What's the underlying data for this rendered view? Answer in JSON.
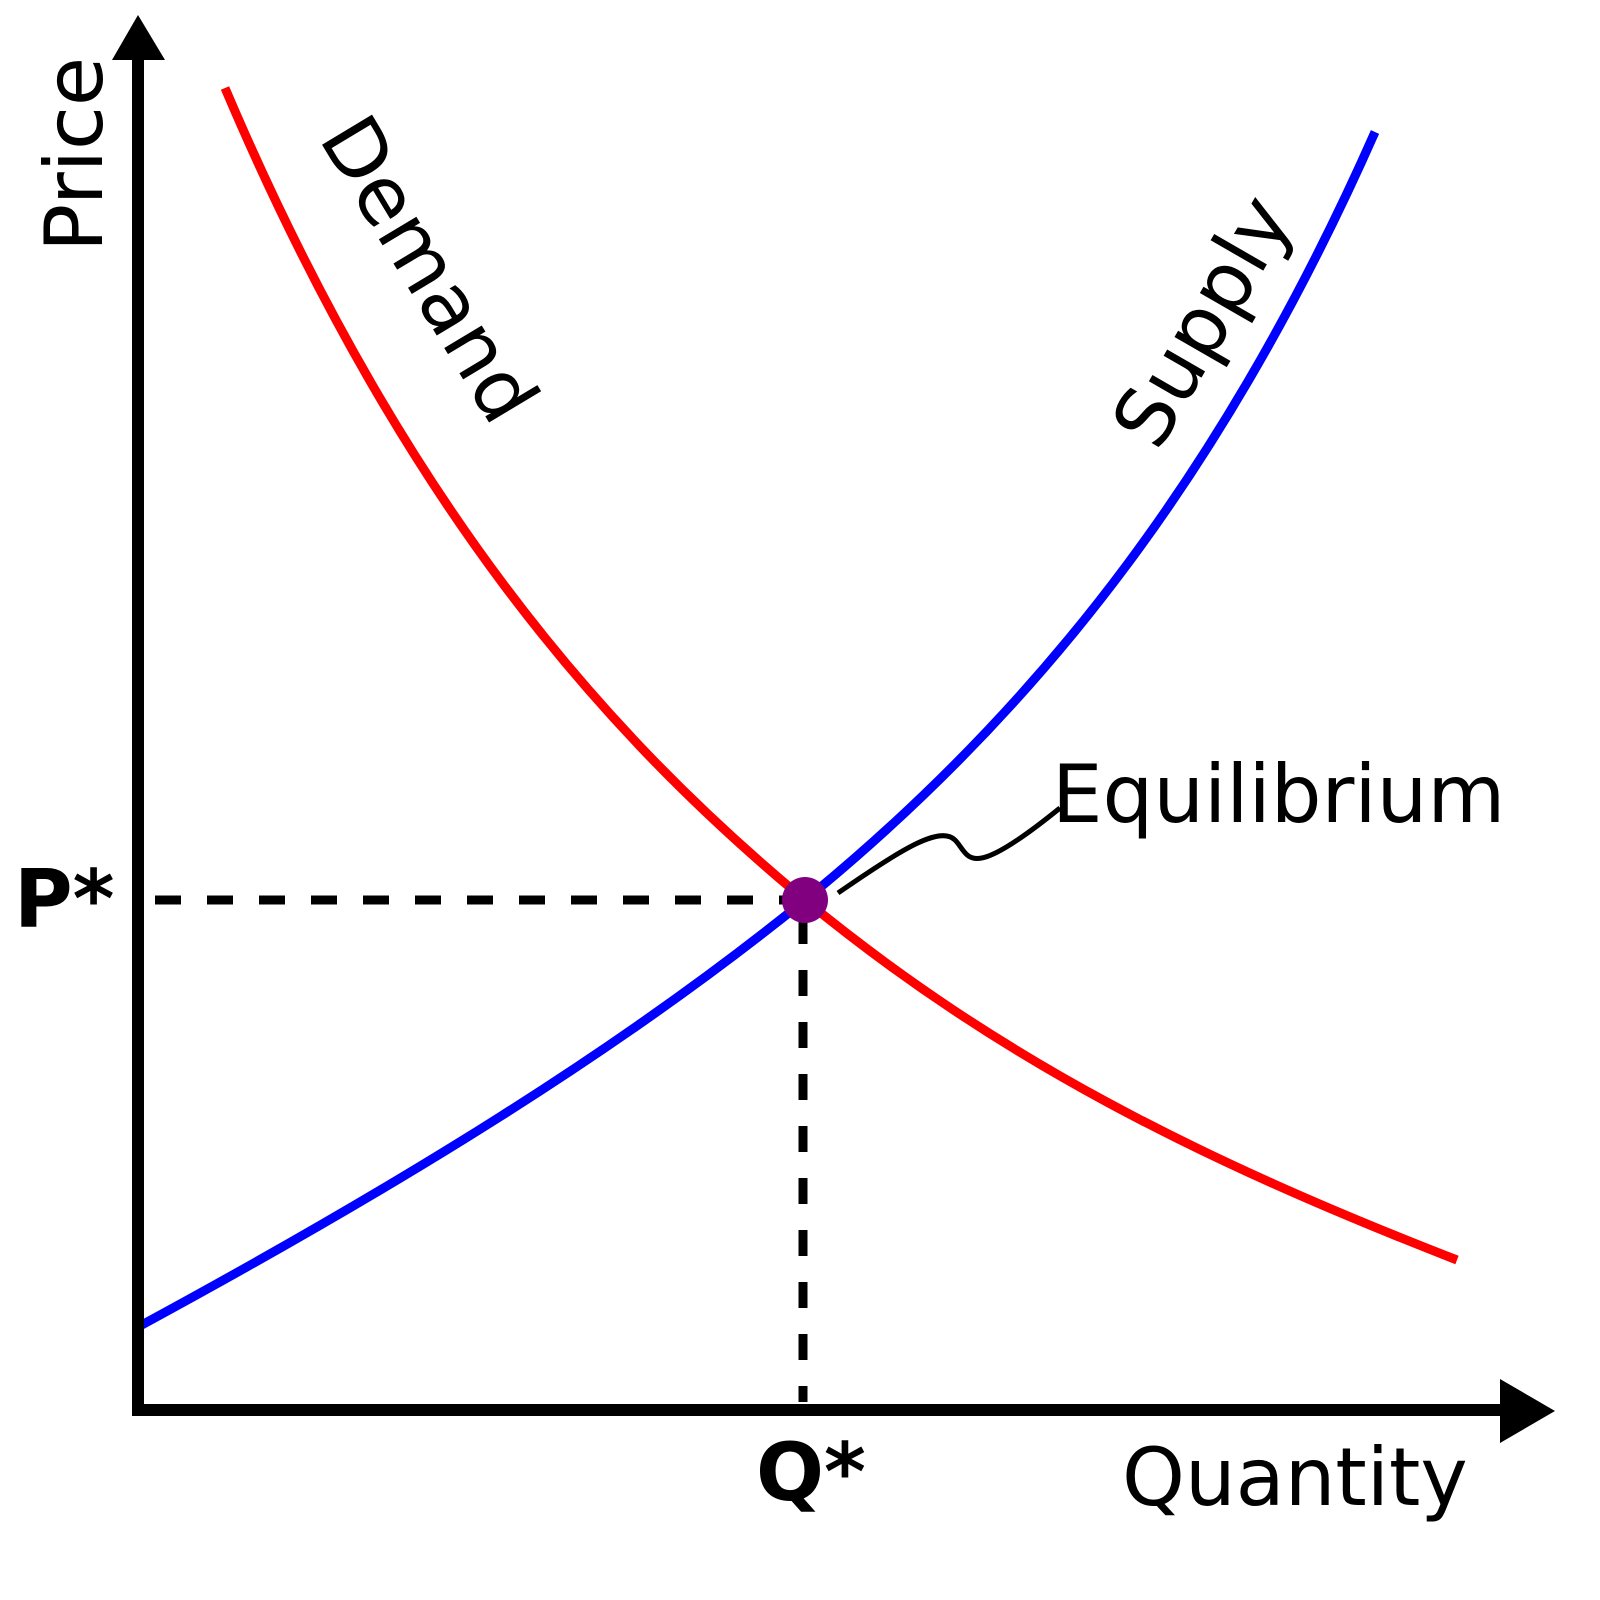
{
  "diagram": {
    "axes": {
      "y_label": "Price",
      "x_label": "Quantity"
    },
    "curves": {
      "demand": {
        "label": "Demand",
        "color": "#ff0000"
      },
      "supply": {
        "label": "Supply",
        "color": "#0000ff"
      }
    },
    "equilibrium": {
      "label": "Equilibrium",
      "point_color": "#800080",
      "price_label": "P*",
      "quantity_label": "Q*"
    },
    "guide_line_style": "dashed"
  }
}
